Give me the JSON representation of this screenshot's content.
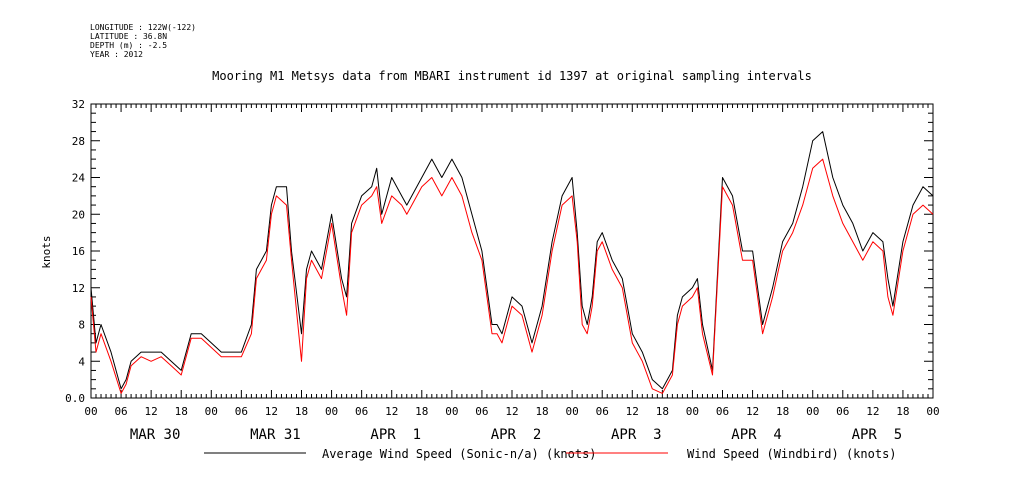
{
  "meta": {
    "longitude": "LONGITUDE : 122W(-122)",
    "latitude": "LATITUDE : 36.8N",
    "depth": "DEPTH (m) : -2.5",
    "year": "YEAR : 2012"
  },
  "colors": {
    "background": "#ffffff",
    "axis": "#000000",
    "series_1": "#000000",
    "series_2": "#ff0000"
  },
  "chart_data": {
    "type": "line",
    "title": "Mooring M1 Metsys data from MBARI instrument id 1397 at original sampling intervals",
    "ylabel": "knots",
    "xlabel": "",
    "ylim": [
      0,
      32
    ],
    "xlim_hours": [
      0,
      168
    ],
    "y_ticks": [
      0.0,
      4.0,
      8.0,
      12.0,
      16.0,
      20.0,
      24.0,
      28.0,
      32.0
    ],
    "y_tick_labels": [
      "0.0",
      "4",
      "8",
      "12",
      "16",
      "20",
      "24",
      "28",
      "32"
    ],
    "x_tick_labels": [
      "00",
      "06",
      "12",
      "18",
      "00",
      "06",
      "12",
      "18",
      "00",
      "06",
      "12",
      "18",
      "00",
      "06",
      "12",
      "18",
      "00",
      "06",
      "12",
      "18",
      "00",
      "06",
      "12",
      "18",
      "00",
      "06",
      "12",
      "18",
      "00"
    ],
    "day_labels": [
      "MAR 30",
      "MAR 31",
      "APR  1",
      "APR  2",
      "APR  3",
      "APR  4",
      "APR  5"
    ],
    "grid": false,
    "legend_position": "bottom",
    "series": [
      {
        "name": "Average Wind Speed (Sonic-n/a) (knots)",
        "x_hours": [
          0,
          1,
          2,
          4,
          6,
          7,
          8,
          10,
          12,
          14,
          16,
          18,
          20,
          22,
          24,
          26,
          28,
          30,
          32,
          33,
          34,
          35,
          36,
          37,
          39,
          40,
          42,
          43,
          44,
          46,
          48,
          50,
          51,
          52,
          54,
          56,
          57,
          58,
          60,
          62,
          63,
          64,
          66,
          68,
          70,
          72,
          74,
          76,
          78,
          80,
          81,
          82,
          84,
          86,
          88,
          90,
          92,
          94,
          96,
          97,
          98,
          99,
          100,
          101,
          102,
          104,
          106,
          108,
          110,
          112,
          114,
          115,
          116,
          117,
          118,
          120,
          121,
          122,
          124,
          126,
          128,
          130,
          132,
          134,
          135,
          136,
          138,
          140,
          142,
          144,
          146,
          148,
          150,
          152,
          154,
          156,
          158,
          159,
          160,
          162,
          164,
          166,
          168
        ],
        "values": [
          12,
          6,
          8,
          5,
          1,
          2,
          4,
          5,
          5,
          5,
          4,
          3,
          7,
          7,
          6,
          5,
          5,
          5,
          8,
          14,
          15,
          16,
          21,
          23,
          23,
          16,
          7,
          14,
          16,
          14,
          20,
          13,
          11,
          19,
          22,
          23,
          25,
          20,
          24,
          22,
          21,
          22,
          24,
          26,
          24,
          26,
          24,
          20,
          16,
          8,
          8,
          7,
          11,
          10,
          6,
          10,
          17,
          22,
          24,
          18,
          10,
          8,
          11,
          17,
          18,
          15,
          13,
          7,
          5,
          2,
          1,
          2,
          3,
          9,
          11,
          12,
          13,
          8,
          3,
          24,
          22,
          16,
          16,
          8,
          10,
          12,
          17,
          19,
          23,
          28,
          29,
          24,
          21,
          19,
          16,
          18,
          17,
          13,
          10,
          17,
          21,
          23,
          22
        ]
      },
      {
        "name": "Wind Speed (Windbird) (knots)",
        "x_hours": [
          0,
          1,
          2,
          4,
          6,
          7,
          8,
          10,
          12,
          14,
          16,
          18,
          20,
          22,
          24,
          26,
          28,
          30,
          32,
          33,
          34,
          35,
          36,
          37,
          39,
          40,
          42,
          43,
          44,
          46,
          48,
          50,
          51,
          52,
          54,
          56,
          57,
          58,
          60,
          62,
          63,
          64,
          66,
          68,
          70,
          72,
          74,
          76,
          78,
          80,
          81,
          82,
          84,
          86,
          88,
          90,
          92,
          94,
          96,
          97,
          98,
          99,
          100,
          101,
          102,
          104,
          106,
          108,
          110,
          112,
          114,
          115,
          116,
          117,
          118,
          120,
          121,
          122,
          124,
          126,
          128,
          130,
          132,
          134,
          135,
          136,
          138,
          140,
          142,
          144,
          146,
          148,
          150,
          152,
          154,
          156,
          158,
          159,
          160,
          162,
          164,
          166,
          168
        ],
        "values": [
          11,
          5,
          7,
          4,
          0.5,
          1.5,
          3.5,
          4.5,
          4,
          4.5,
          3.5,
          2.5,
          6.5,
          6.5,
          5.5,
          4.5,
          4.5,
          4.5,
          7,
          13,
          14,
          15,
          20,
          22,
          21,
          15,
          4,
          13,
          15,
          13,
          19,
          12,
          9,
          18,
          21,
          22,
          23,
          19,
          22,
          21,
          20,
          21,
          23,
          24,
          22,
          24,
          22,
          18,
          15,
          7,
          7,
          6,
          10,
          9,
          5,
          9,
          16,
          21,
          22,
          17,
          8,
          7,
          10,
          16,
          17,
          14,
          12,
          6,
          4,
          1,
          0.5,
          1.5,
          2.5,
          8,
          10,
          11,
          12,
          7,
          2.5,
          23,
          21,
          15,
          15,
          7,
          9,
          11,
          16,
          18,
          21,
          25,
          26,
          22,
          19,
          17,
          15,
          17,
          16,
          11,
          9,
          16,
          20,
          21,
          20
        ]
      }
    ]
  }
}
